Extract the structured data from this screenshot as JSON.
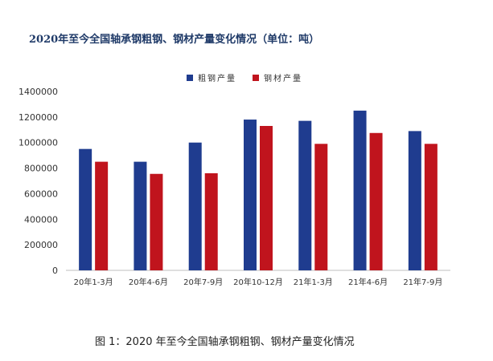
{
  "chart_data": {
    "type": "bar",
    "title": "2020年至今全国轴承钢粗钢、钢材产量变化情况（单位：吨）",
    "categories": [
      "20年1-3月",
      "20年4-6月",
      "20年7-9月",
      "20年10-12月",
      "21年1-3月",
      "21年4-6月",
      "21年7-9月"
    ],
    "series": [
      {
        "name": "粗钢产量",
        "color": "#1f3c8f",
        "values": [
          950000,
          850000,
          1000000,
          1180000,
          1170000,
          1250000,
          1090000
        ]
      },
      {
        "name": "钢材产量",
        "color": "#c0141d",
        "values": [
          850000,
          755000,
          760000,
          1130000,
          990000,
          1075000,
          990000
        ]
      }
    ],
    "ylim": [
      0,
      1400000
    ],
    "yticks": [
      0,
      200000,
      400000,
      600000,
      800000,
      1000000,
      1200000,
      1400000
    ],
    "ytick_labels": [
      "0",
      "200000",
      "400000",
      "600000",
      "800000",
      "1000000",
      "1200000",
      "1400000"
    ],
    "grid": false,
    "legend_position": "top"
  },
  "caption": "图 1：2020 年至今全国轴承钢粗钢、钢材产量变化情况"
}
